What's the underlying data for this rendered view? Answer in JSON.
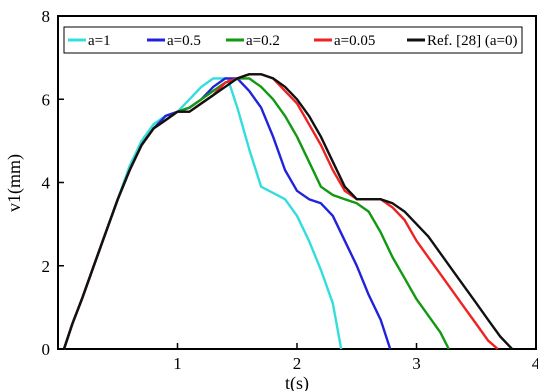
{
  "chart_data": {
    "type": "line",
    "xlabel": "t(s)",
    "ylabel": "v1(mm)",
    "xlim": [
      0,
      4
    ],
    "ylim": [
      0,
      8
    ],
    "x_ticks": [
      "1",
      "2",
      "3",
      "4"
    ],
    "y_ticks": [
      "0",
      "2",
      "4",
      "6",
      "8"
    ],
    "grid": false,
    "legend_position": "top",
    "series": [
      {
        "name": "a=1",
        "color": "#33dddd",
        "points": [
          [
            0.05,
            0
          ],
          [
            0.12,
            0.6
          ],
          [
            0.2,
            1.2
          ],
          [
            0.3,
            2.0
          ],
          [
            0.4,
            2.8
          ],
          [
            0.5,
            3.6
          ],
          [
            0.6,
            4.4
          ],
          [
            0.7,
            5.0
          ],
          [
            0.8,
            5.4
          ],
          [
            0.9,
            5.6
          ],
          [
            1.0,
            5.7
          ],
          [
            1.1,
            6.0
          ],
          [
            1.2,
            6.3
          ],
          [
            1.3,
            6.5
          ],
          [
            1.42,
            6.5
          ],
          [
            1.5,
            5.8
          ],
          [
            1.6,
            4.8
          ],
          [
            1.7,
            3.9
          ],
          [
            1.8,
            3.75
          ],
          [
            1.9,
            3.6
          ],
          [
            2.0,
            3.2
          ],
          [
            2.1,
            2.6
          ],
          [
            2.2,
            1.9
          ],
          [
            2.3,
            1.1
          ],
          [
            2.37,
            0
          ]
        ]
      },
      {
        "name": "a=0.5",
        "color": "#2222dd",
        "points": [
          [
            0.05,
            0
          ],
          [
            0.12,
            0.6
          ],
          [
            0.2,
            1.2
          ],
          [
            0.3,
            2.0
          ],
          [
            0.4,
            2.8
          ],
          [
            0.5,
            3.6
          ],
          [
            0.6,
            4.3
          ],
          [
            0.7,
            4.9
          ],
          [
            0.8,
            5.3
          ],
          [
            0.9,
            5.6
          ],
          [
            1.0,
            5.7
          ],
          [
            1.1,
            5.8
          ],
          [
            1.2,
            6.0
          ],
          [
            1.3,
            6.3
          ],
          [
            1.4,
            6.5
          ],
          [
            1.5,
            6.5
          ],
          [
            1.6,
            6.2
          ],
          [
            1.7,
            5.8
          ],
          [
            1.8,
            5.1
          ],
          [
            1.9,
            4.3
          ],
          [
            2.0,
            3.8
          ],
          [
            2.1,
            3.6
          ],
          [
            2.2,
            3.5
          ],
          [
            2.3,
            3.2
          ],
          [
            2.4,
            2.6
          ],
          [
            2.5,
            2.0
          ],
          [
            2.6,
            1.3
          ],
          [
            2.7,
            0.7
          ],
          [
            2.78,
            0
          ]
        ]
      },
      {
        "name": "a=0.2",
        "color": "#119911",
        "points": [
          [
            0.05,
            0
          ],
          [
            0.12,
            0.6
          ],
          [
            0.2,
            1.2
          ],
          [
            0.3,
            2.0
          ],
          [
            0.4,
            2.8
          ],
          [
            0.5,
            3.6
          ],
          [
            0.6,
            4.3
          ],
          [
            0.7,
            4.9
          ],
          [
            0.8,
            5.3
          ],
          [
            0.9,
            5.5
          ],
          [
            1.0,
            5.7
          ],
          [
            1.1,
            5.8
          ],
          [
            1.2,
            6.0
          ],
          [
            1.3,
            6.2
          ],
          [
            1.4,
            6.4
          ],
          [
            1.5,
            6.5
          ],
          [
            1.6,
            6.5
          ],
          [
            1.7,
            6.3
          ],
          [
            1.8,
            6.0
          ],
          [
            1.9,
            5.6
          ],
          [
            2.0,
            5.1
          ],
          [
            2.1,
            4.5
          ],
          [
            2.2,
            3.9
          ],
          [
            2.3,
            3.7
          ],
          [
            2.4,
            3.6
          ],
          [
            2.5,
            3.5
          ],
          [
            2.6,
            3.3
          ],
          [
            2.7,
            2.8
          ],
          [
            2.8,
            2.2
          ],
          [
            2.9,
            1.7
          ],
          [
            3.0,
            1.2
          ],
          [
            3.1,
            0.8
          ],
          [
            3.2,
            0.4
          ],
          [
            3.27,
            0
          ]
        ]
      },
      {
        "name": "a=0.05",
        "color": "#ee2222",
        "points": [
          [
            0.05,
            0
          ],
          [
            0.12,
            0.6
          ],
          [
            0.2,
            1.2
          ],
          [
            0.3,
            2.0
          ],
          [
            0.4,
            2.8
          ],
          [
            0.5,
            3.6
          ],
          [
            0.6,
            4.3
          ],
          [
            0.7,
            4.9
          ],
          [
            0.8,
            5.3
          ],
          [
            0.9,
            5.5
          ],
          [
            1.0,
            5.7
          ],
          [
            1.1,
            5.7
          ],
          [
            1.2,
            5.9
          ],
          [
            1.3,
            6.1
          ],
          [
            1.4,
            6.4
          ],
          [
            1.5,
            6.5
          ],
          [
            1.6,
            6.6
          ],
          [
            1.7,
            6.6
          ],
          [
            1.8,
            6.5
          ],
          [
            1.9,
            6.2
          ],
          [
            2.0,
            5.9
          ],
          [
            2.1,
            5.4
          ],
          [
            2.2,
            4.9
          ],
          [
            2.3,
            4.3
          ],
          [
            2.4,
            3.8
          ],
          [
            2.5,
            3.6
          ],
          [
            2.6,
            3.6
          ],
          [
            2.7,
            3.6
          ],
          [
            2.8,
            3.4
          ],
          [
            2.9,
            3.1
          ],
          [
            3.0,
            2.6
          ],
          [
            3.1,
            2.2
          ],
          [
            3.2,
            1.8
          ],
          [
            3.3,
            1.4
          ],
          [
            3.4,
            1.0
          ],
          [
            3.5,
            0.6
          ],
          [
            3.6,
            0.2
          ],
          [
            3.68,
            0
          ]
        ]
      },
      {
        "name": "Ref. [28] (a=0)",
        "color": "#111111",
        "points": [
          [
            0.05,
            0
          ],
          [
            0.12,
            0.6
          ],
          [
            0.2,
            1.2
          ],
          [
            0.3,
            2.0
          ],
          [
            0.4,
            2.8
          ],
          [
            0.5,
            3.6
          ],
          [
            0.6,
            4.3
          ],
          [
            0.7,
            4.9
          ],
          [
            0.8,
            5.3
          ],
          [
            0.9,
            5.5
          ],
          [
            1.0,
            5.7
          ],
          [
            1.1,
            5.7
          ],
          [
            1.2,
            5.9
          ],
          [
            1.3,
            6.1
          ],
          [
            1.4,
            6.3
          ],
          [
            1.5,
            6.5
          ],
          [
            1.6,
            6.6
          ],
          [
            1.7,
            6.6
          ],
          [
            1.8,
            6.5
          ],
          [
            1.9,
            6.3
          ],
          [
            2.0,
            6.0
          ],
          [
            2.1,
            5.6
          ],
          [
            2.2,
            5.1
          ],
          [
            2.3,
            4.5
          ],
          [
            2.4,
            3.9
          ],
          [
            2.5,
            3.6
          ],
          [
            2.6,
            3.6
          ],
          [
            2.7,
            3.6
          ],
          [
            2.8,
            3.5
          ],
          [
            2.9,
            3.3
          ],
          [
            3.0,
            3.0
          ],
          [
            3.1,
            2.7
          ],
          [
            3.2,
            2.3
          ],
          [
            3.3,
            1.9
          ],
          [
            3.4,
            1.5
          ],
          [
            3.5,
            1.1
          ],
          [
            3.6,
            0.7
          ],
          [
            3.7,
            0.3
          ],
          [
            3.8,
            0
          ]
        ]
      }
    ]
  }
}
